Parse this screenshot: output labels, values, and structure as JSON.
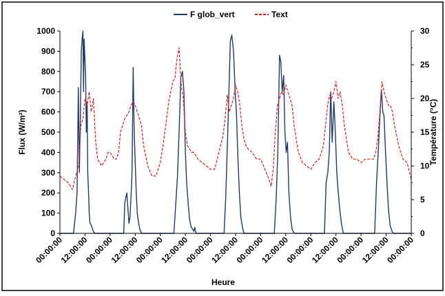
{
  "chart_data": {
    "type": "line",
    "title": "",
    "xlabel": "Heure",
    "ylabel_left": "Flux (W/m²)",
    "ylabel_right": "Température (°C)",
    "ylim_left": [
      0,
      1000
    ],
    "ylim_right": [
      0,
      30
    ],
    "yticks_left": [
      "0",
      "100",
      "200",
      "300",
      "400",
      "500",
      "600",
      "700",
      "800",
      "900",
      "1000"
    ],
    "yticks_right": [
      "0",
      "5",
      "10",
      "15",
      "20",
      "25",
      "30"
    ],
    "xticks": [
      "00:00:00",
      "12:00:00",
      "00:00:00",
      "12:00:00",
      "00:00:00",
      "12:00:00",
      "00:00:00",
      "12:00:00",
      "00:00:00",
      "12:00:00",
      "00:00:00",
      "12:00:00",
      "00:00:00",
      "12:00:00",
      "00:00:00"
    ],
    "xlim_hours": [
      0,
      168
    ],
    "legend_position": "top",
    "grid": false,
    "series": [
      {
        "name": "F glob_vert",
        "axis": "left",
        "color": "#1f3a6b",
        "style": "solid",
        "x_hours": [
          0,
          6.5,
          7.5,
          8.2,
          8.8,
          9.3,
          9.8,
          10.2,
          10.6,
          11,
          11.3,
          11.6,
          12,
          12.3,
          12.6,
          13,
          13.3,
          13.7,
          14,
          14.4,
          15,
          15.6,
          16.2,
          16.8,
          17.5,
          24,
          30.5,
          31,
          32,
          33,
          33.5,
          34,
          34.5,
          35,
          35.5,
          36,
          36.5,
          37,
          37.5,
          38.2,
          39,
          48,
          54.5,
          55.3,
          56.2,
          57,
          57.8,
          58.6,
          59.3,
          60,
          60.6,
          61.3,
          62,
          62.8,
          63.5,
          64,
          64.5,
          65,
          72,
          78.5,
          79.3,
          80.1,
          80.8,
          81.5,
          82.2,
          83,
          83.8,
          84.4,
          85.1,
          85.8,
          86.5,
          87.3,
          88,
          96,
          102.5,
          103.4,
          104.2,
          105,
          105.6,
          106.3,
          107,
          107.6,
          108.2,
          108.8,
          109.5,
          110.3,
          111,
          112,
          120,
          126.5,
          127.3,
          128.1,
          128.8,
          129.5,
          130.2,
          131,
          131.7,
          132.4,
          133.1,
          133.8,
          134.6,
          135.5,
          144,
          150.5,
          151.4,
          152.2,
          153,
          153.7,
          154.4,
          155,
          155.7,
          156.4,
          157.1,
          157.9,
          158.8,
          159.5,
          168
        ],
        "values": [
          0,
          0,
          100,
          200,
          720,
          300,
          600,
          900,
          960,
          1000,
          700,
          960,
          850,
          780,
          500,
          650,
          300,
          200,
          100,
          50,
          40,
          20,
          5,
          0,
          0,
          0,
          0,
          150,
          200,
          50,
          80,
          180,
          300,
          820,
          500,
          350,
          200,
          100,
          60,
          20,
          0,
          0,
          0,
          130,
          280,
          500,
          770,
          800,
          700,
          400,
          250,
          150,
          70,
          30,
          20,
          10,
          30,
          0,
          0,
          0,
          180,
          450,
          700,
          950,
          980,
          900,
          700,
          600,
          380,
          200,
          80,
          30,
          0,
          0,
          0,
          170,
          400,
          880,
          850,
          700,
          780,
          500,
          400,
          450,
          200,
          80,
          20,
          0,
          0,
          0,
          250,
          300,
          400,
          700,
          450,
          650,
          500,
          300,
          200,
          120,
          50,
          0,
          0,
          0,
          250,
          400,
          580,
          710,
          600,
          580,
          400,
          250,
          120,
          40,
          10,
          0,
          0
        ]
      },
      {
        "name": "Text",
        "axis": "right",
        "color": "#e11d1d",
        "style": "dashed",
        "x_hours": [
          0,
          2,
          4,
          6,
          7.5,
          9,
          10,
          11,
          12,
          13,
          14,
          15,
          16,
          17,
          18,
          19,
          20,
          21,
          22,
          23,
          24,
          25,
          26,
          27,
          28,
          29,
          30,
          31,
          32,
          33,
          34,
          35,
          36,
          37,
          38,
          39,
          40,
          42,
          44,
          46,
          48,
          50,
          52,
          54,
          55,
          56,
          57,
          58,
          59,
          60,
          61,
          62,
          63,
          64,
          65,
          66,
          68,
          70,
          72,
          74,
          76,
          78,
          79,
          80,
          81,
          82,
          83,
          84,
          85,
          86,
          87,
          88,
          89,
          90,
          92,
          94,
          96,
          98,
          100,
          101,
          102,
          103,
          104,
          105,
          106,
          107,
          108,
          109,
          110,
          111,
          112,
          114,
          116,
          118,
          120,
          122,
          124,
          126,
          127,
          128,
          129,
          130,
          131,
          132,
          133,
          134,
          135,
          136,
          138,
          140,
          142,
          144,
          146,
          148,
          150,
          151,
          152,
          153,
          154,
          155,
          156,
          157,
          158,
          159,
          160,
          162,
          164,
          166,
          168
        ],
        "values": [
          8.5,
          8,
          7.5,
          6.5,
          8.5,
          10,
          16,
          17,
          20,
          19,
          21,
          18,
          20,
          14,
          11,
          10.5,
          10,
          10.5,
          11,
          12,
          12,
          11.5,
          11,
          11,
          12,
          15,
          16,
          17,
          17.5,
          18,
          19,
          19.5,
          19,
          18,
          17,
          16,
          13,
          10,
          8.5,
          8.5,
          10.5,
          14.5,
          19.5,
          22.5,
          23,
          26,
          27.5,
          22,
          20,
          15,
          13,
          12.5,
          12,
          12,
          11.5,
          11,
          10.5,
          10,
          9.5,
          9.5,
          12,
          14.5,
          17,
          20.5,
          18,
          19,
          20,
          22,
          21,
          19,
          16,
          14,
          13,
          12.5,
          12,
          11,
          11,
          9.5,
          8,
          7,
          9.5,
          15,
          19,
          20,
          21,
          20.5,
          22,
          21,
          20,
          19,
          16,
          12,
          10.5,
          10,
          9.5,
          10.5,
          11,
          13,
          16,
          19,
          20.5,
          20,
          21,
          22.5,
          20,
          21,
          19,
          16,
          12,
          11,
          11,
          10.5,
          11,
          11,
          11,
          12,
          14,
          18,
          22.5,
          21,
          20,
          19,
          19,
          18,
          16,
          13,
          11,
          10.5,
          8
        ]
      }
    ]
  }
}
